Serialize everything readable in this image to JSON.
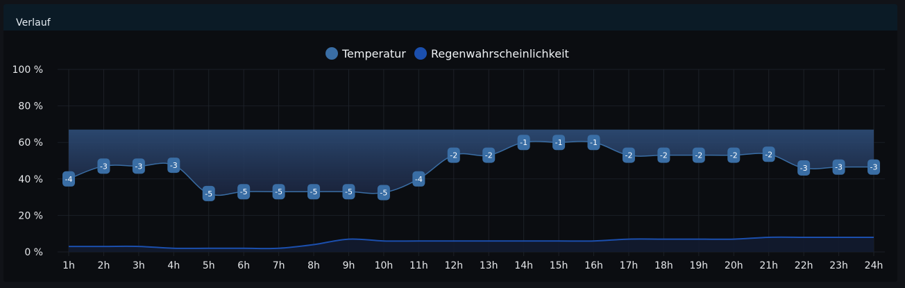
{
  "panel": {
    "title": "Verlauf"
  },
  "colors": {
    "background": "#0b0d11",
    "header": "#0b1b26",
    "temperature": "#3a6ea5",
    "rain": "#1b4fae",
    "grid": "#22262d",
    "text": "#e6e8eb"
  },
  "chart_data": {
    "type": "line",
    "categories": [
      "1h",
      "2h",
      "3h",
      "4h",
      "5h",
      "6h",
      "7h",
      "8h",
      "9h",
      "10h",
      "11h",
      "12h",
      "13h",
      "14h",
      "15h",
      "16h",
      "17h",
      "18h",
      "19h",
      "20h",
      "21h",
      "22h",
      "23h",
      "24h"
    ],
    "y_ticks": [
      "100 %",
      "80 %",
      "60 %",
      "40 %",
      "20 %",
      "0 %"
    ],
    "ylim": [
      0,
      100
    ],
    "legend_position": "top-center",
    "grid": true,
    "series": [
      {
        "name": "Temperatur",
        "color": "#3a6ea5",
        "values": [
          -4,
          -3,
          -3,
          -3,
          -5,
          -5,
          -5,
          -5,
          -5,
          -5,
          -4,
          -2,
          -2,
          -1,
          -1,
          -1,
          -2,
          -2,
          -2,
          -2,
          -2,
          -3,
          -3,
          -3
        ],
        "y_position_percent": [
          40,
          47,
          47,
          47.5,
          32,
          33,
          33,
          33,
          33,
          32.5,
          40,
          53,
          53,
          60,
          60,
          60,
          53,
          53,
          53,
          53,
          53.5,
          46,
          46.5,
          46.5
        ],
        "fill_top_percent": 67
      },
      {
        "name": "Regenwahrscheinlichkeit",
        "color": "#1b4fae",
        "values": [
          3,
          3,
          3,
          2,
          2,
          2,
          2,
          4,
          7,
          6,
          6,
          6,
          6,
          6,
          6,
          6,
          7,
          7,
          7,
          7,
          8,
          8,
          8,
          8
        ]
      }
    ]
  }
}
